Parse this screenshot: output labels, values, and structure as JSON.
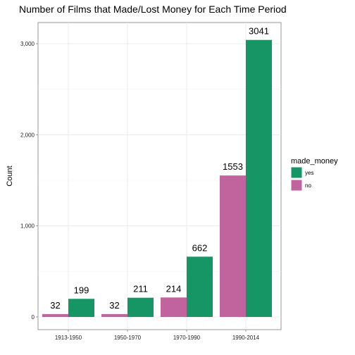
{
  "chart_data": {
    "type": "bar",
    "title": "Number of Films that Made/Lost Money for Each Time Period",
    "xlabel": "",
    "ylabel": "Count",
    "categories": [
      "1913-1950",
      "1950-1970",
      "1970-1990",
      "1990-2014"
    ],
    "series": [
      {
        "name": "no",
        "color": "#c1649d",
        "values": [
          32,
          32,
          214,
          1553
        ]
      },
      {
        "name": "yes",
        "color": "#159664",
        "values": [
          199,
          211,
          662,
          3041
        ]
      }
    ],
    "ylim": [
      0,
      3041
    ],
    "yticks": [
      0,
      1000,
      2000,
      3000
    ],
    "ytick_labels": [
      "0",
      "1,000",
      "2,000",
      "3,000"
    ],
    "grid": true,
    "legend": {
      "title": "made_money",
      "placement": "right",
      "entries": [
        {
          "label": "yes",
          "color": "#159664"
        },
        {
          "label": "no",
          "color": "#c1649d"
        }
      ]
    }
  }
}
